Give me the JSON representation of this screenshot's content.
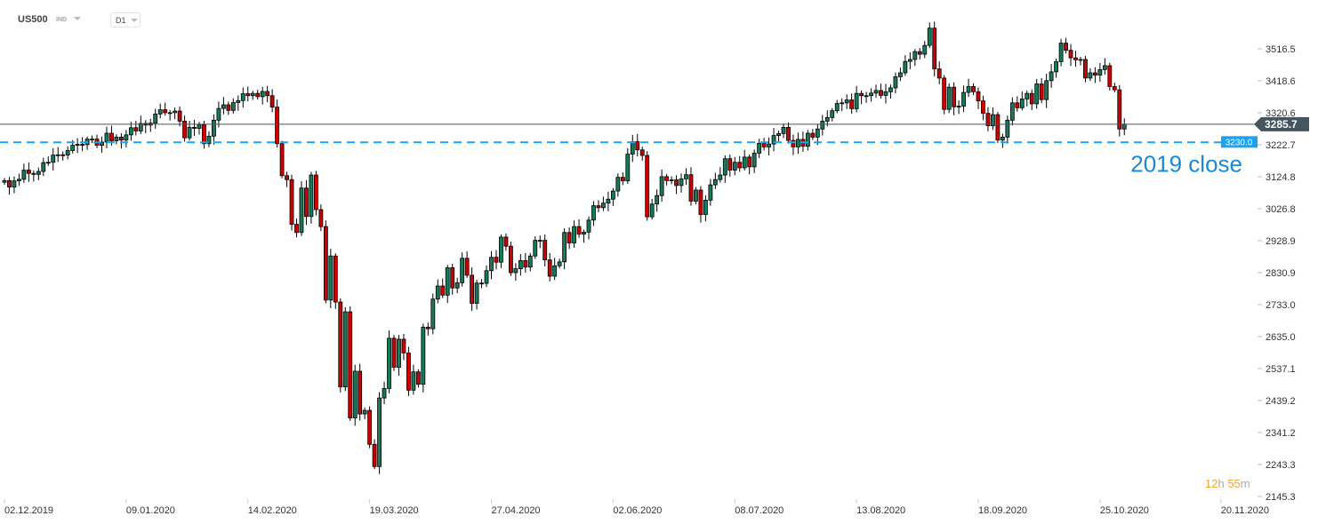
{
  "header": {
    "symbol": "US500",
    "type": "IND",
    "timeframe": "D1"
  },
  "timer": {
    "hours": "12",
    "h": "h",
    "minutes": "55",
    "m": "m"
  },
  "colors": {
    "up": "#17785a",
    "down": "#cc0000",
    "wick": "#000000",
    "level": "#1aa3f0",
    "annotation": "#1a8ad4",
    "price_tag": "#455560",
    "timer": "#f5a623"
  },
  "chart_data": {
    "type": "candlestick",
    "symbol": "US500",
    "timeframe": "D1",
    "first_open": 3108,
    "close": [
      3113,
      3093,
      3112,
      3117,
      3145,
      3135,
      3132,
      3141,
      3168,
      3169,
      3191,
      3192,
      3191,
      3205,
      3221,
      3224,
      3223,
      3240,
      3240,
      3221,
      3231,
      3258,
      3235,
      3246,
      3237,
      3253,
      3275,
      3265,
      3288,
      3283,
      3289,
      3317,
      3330,
      3321,
      3321,
      3326,
      3295,
      3244,
      3276,
      3273,
      3284,
      3226,
      3249,
      3298,
      3334,
      3345,
      3328,
      3352,
      3358,
      3379,
      3373,
      3380,
      3370,
      3386,
      3373,
      3338,
      3226,
      3128,
      3116,
      2979,
      2954,
      3090,
      3003,
      3130,
      3024,
      2972,
      2747,
      2882,
      2741,
      2481,
      2711,
      2386,
      2529,
      2398,
      2409,
      2305,
      2237,
      2447,
      2476,
      2630,
      2541,
      2627,
      2585,
      2471,
      2527,
      2489,
      2664,
      2659,
      2750,
      2790,
      2762,
      2846,
      2784,
      2800,
      2875,
      2823,
      2737,
      2799,
      2798,
      2837,
      2878,
      2863,
      2940,
      2912,
      2831,
      2843,
      2868,
      2848,
      2882,
      2930,
      2930,
      2870,
      2820,
      2852,
      2864,
      2954,
      2922,
      2972,
      2949,
      2955,
      2992,
      3036,
      3030,
      3044,
      3056,
      3081,
      3123,
      3112,
      3194,
      3232,
      3207,
      3190,
      3002,
      3041,
      3067,
      3125,
      3113,
      3115,
      3098,
      3118,
      3131,
      3050,
      3084,
      3009,
      3053,
      3100,
      3116,
      3130,
      3180,
      3145,
      3169,
      3152,
      3185,
      3155,
      3197,
      3227,
      3216,
      3225,
      3251,
      3257,
      3276,
      3236,
      3216,
      3239,
      3218,
      3258,
      3246,
      3271,
      3295,
      3306,
      3327,
      3349,
      3351,
      3360,
      3333,
      3380,
      3373,
      3373,
      3381,
      3389,
      3374,
      3385,
      3397,
      3431,
      3443,
      3478,
      3484,
      3508,
      3500,
      3527,
      3580,
      3455,
      3427,
      3331,
      3399,
      3339,
      3341,
      3383,
      3401,
      3385,
      3357,
      3319,
      3281,
      3315,
      3237,
      3246,
      3298,
      3351,
      3336,
      3363,
      3380,
      3348,
      3409,
      3361,
      3419,
      3446,
      3477,
      3534,
      3512,
      3489,
      3483,
      3484,
      3427,
      3443,
      3436,
      3453,
      3465,
      3401,
      3391,
      3271,
      3285.7
    ],
    "x_ticks": [
      "02.12.2019",
      "09.01.2020",
      "14.02.2020",
      "19.03.2020",
      "27.04.2020",
      "02.06.2020",
      "08.07.2020",
      "13.08.2020",
      "18.09.2020",
      "25.10.2020",
      "20.11.2020"
    ],
    "y_ticks": [
      3516.5,
      3418.6,
      3320.6,
      3222.7,
      3124.8,
      3026.8,
      2928.9,
      2830.9,
      2733.0,
      2635.0,
      2537.1,
      2439.2,
      2341.2,
      2243.3,
      2145.3
    ],
    "ylim": [
      2145.3,
      3516.5
    ],
    "current_price": "3285.7",
    "level": {
      "value": "3230.0",
      "label": "2019 close"
    }
  }
}
